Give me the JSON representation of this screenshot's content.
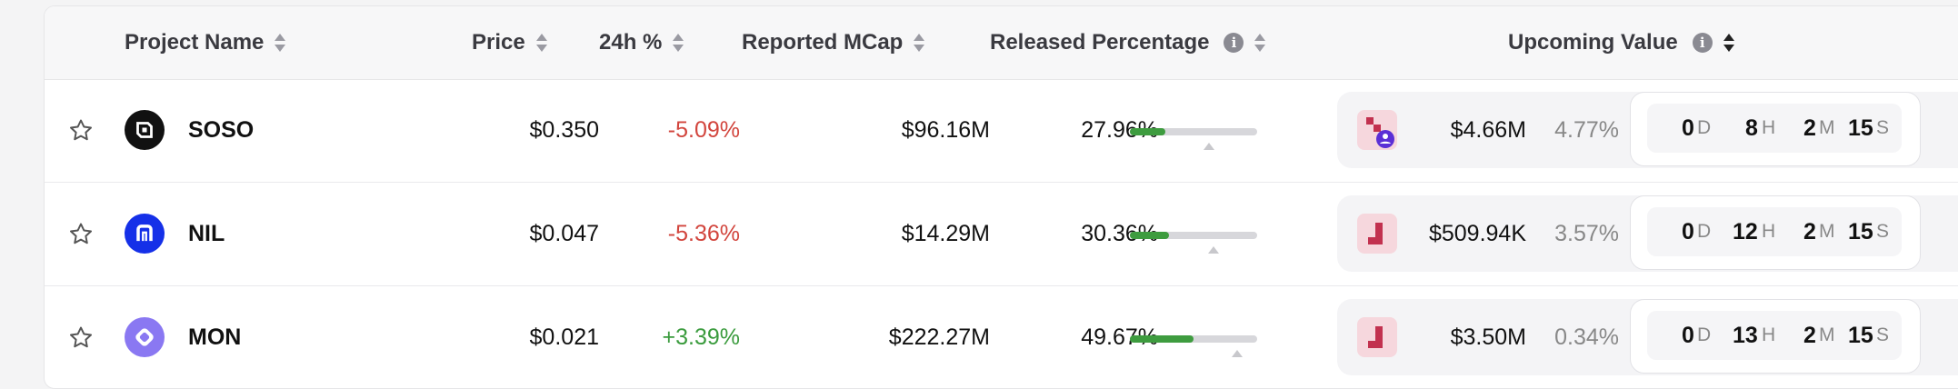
{
  "header": {
    "project_name": "Project Name",
    "price": "Price",
    "change_24h": "24h %",
    "reported_mcap": "Reported MCap",
    "released_percentage": "Released Percentage",
    "upcoming_value": "Upcoming Value",
    "info_glyph": "i"
  },
  "timer_units": {
    "days": "D",
    "hours": "H",
    "minutes": "M",
    "seconds": "S"
  },
  "colors": {
    "negative": "#d2453d",
    "positive": "#3a9b3d",
    "bar_fill": "#3e9c3f",
    "bar_track": "#d7d7db",
    "unlock_icon": "#c2314f"
  },
  "rows": [
    {
      "name": "SOSO",
      "star": "☆",
      "logo_icon": "soso-logo-icon",
      "price": "$0.350",
      "change": "-5.09%",
      "change_sign": "negative",
      "mcap": "$96.16M",
      "released": "27.96%",
      "released_fraction": 0.2796,
      "upcoming_value": "$4.66M",
      "upcoming_pct": "4.77%",
      "timer": {
        "d": "0",
        "h": "8",
        "m": "2",
        "s": "15"
      }
    },
    {
      "name": "NIL",
      "star": "☆",
      "logo_icon": "nil-logo-icon",
      "price": "$0.047",
      "change": "-5.36%",
      "change_sign": "negative",
      "mcap": "$14.29M",
      "released": "30.36%",
      "released_fraction": 0.3036,
      "upcoming_value": "$509.94K",
      "upcoming_pct": "3.57%",
      "timer": {
        "d": "0",
        "h": "12",
        "m": "2",
        "s": "15"
      }
    },
    {
      "name": "MON",
      "star": "☆",
      "logo_icon": "mon-logo-icon",
      "price": "$0.021",
      "change": "+3.39%",
      "change_sign": "positive",
      "mcap": "$222.27M",
      "released": "49.67%",
      "released_fraction": 0.4967,
      "upcoming_value": "$3.50M",
      "upcoming_pct": "0.34%",
      "timer": {
        "d": "0",
        "h": "13",
        "m": "2",
        "s": "15"
      }
    }
  ]
}
